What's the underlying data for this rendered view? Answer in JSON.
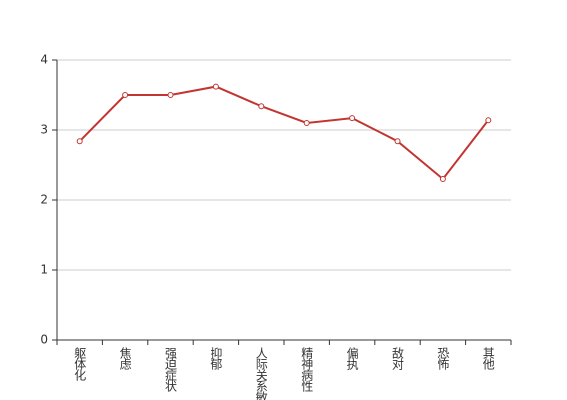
{
  "chart_data": {
    "type": "line",
    "categories": [
      "躯体化",
      "焦虑",
      "强迫症状",
      "抑郁",
      "人际关系敏感",
      "精神病性",
      "偏执",
      "敌对",
      "恐怖",
      "其他"
    ],
    "series": [
      {
        "color": "#c23531",
        "values": [
          2.84,
          3.5,
          3.5,
          3.62,
          3.34,
          3.1,
          3.17,
          2.84,
          2.3,
          3.14
        ]
      }
    ],
    "ylim": [
      0,
      4
    ],
    "yticks": [
      0,
      1,
      2,
      3,
      4
    ],
    "grid": true
  }
}
